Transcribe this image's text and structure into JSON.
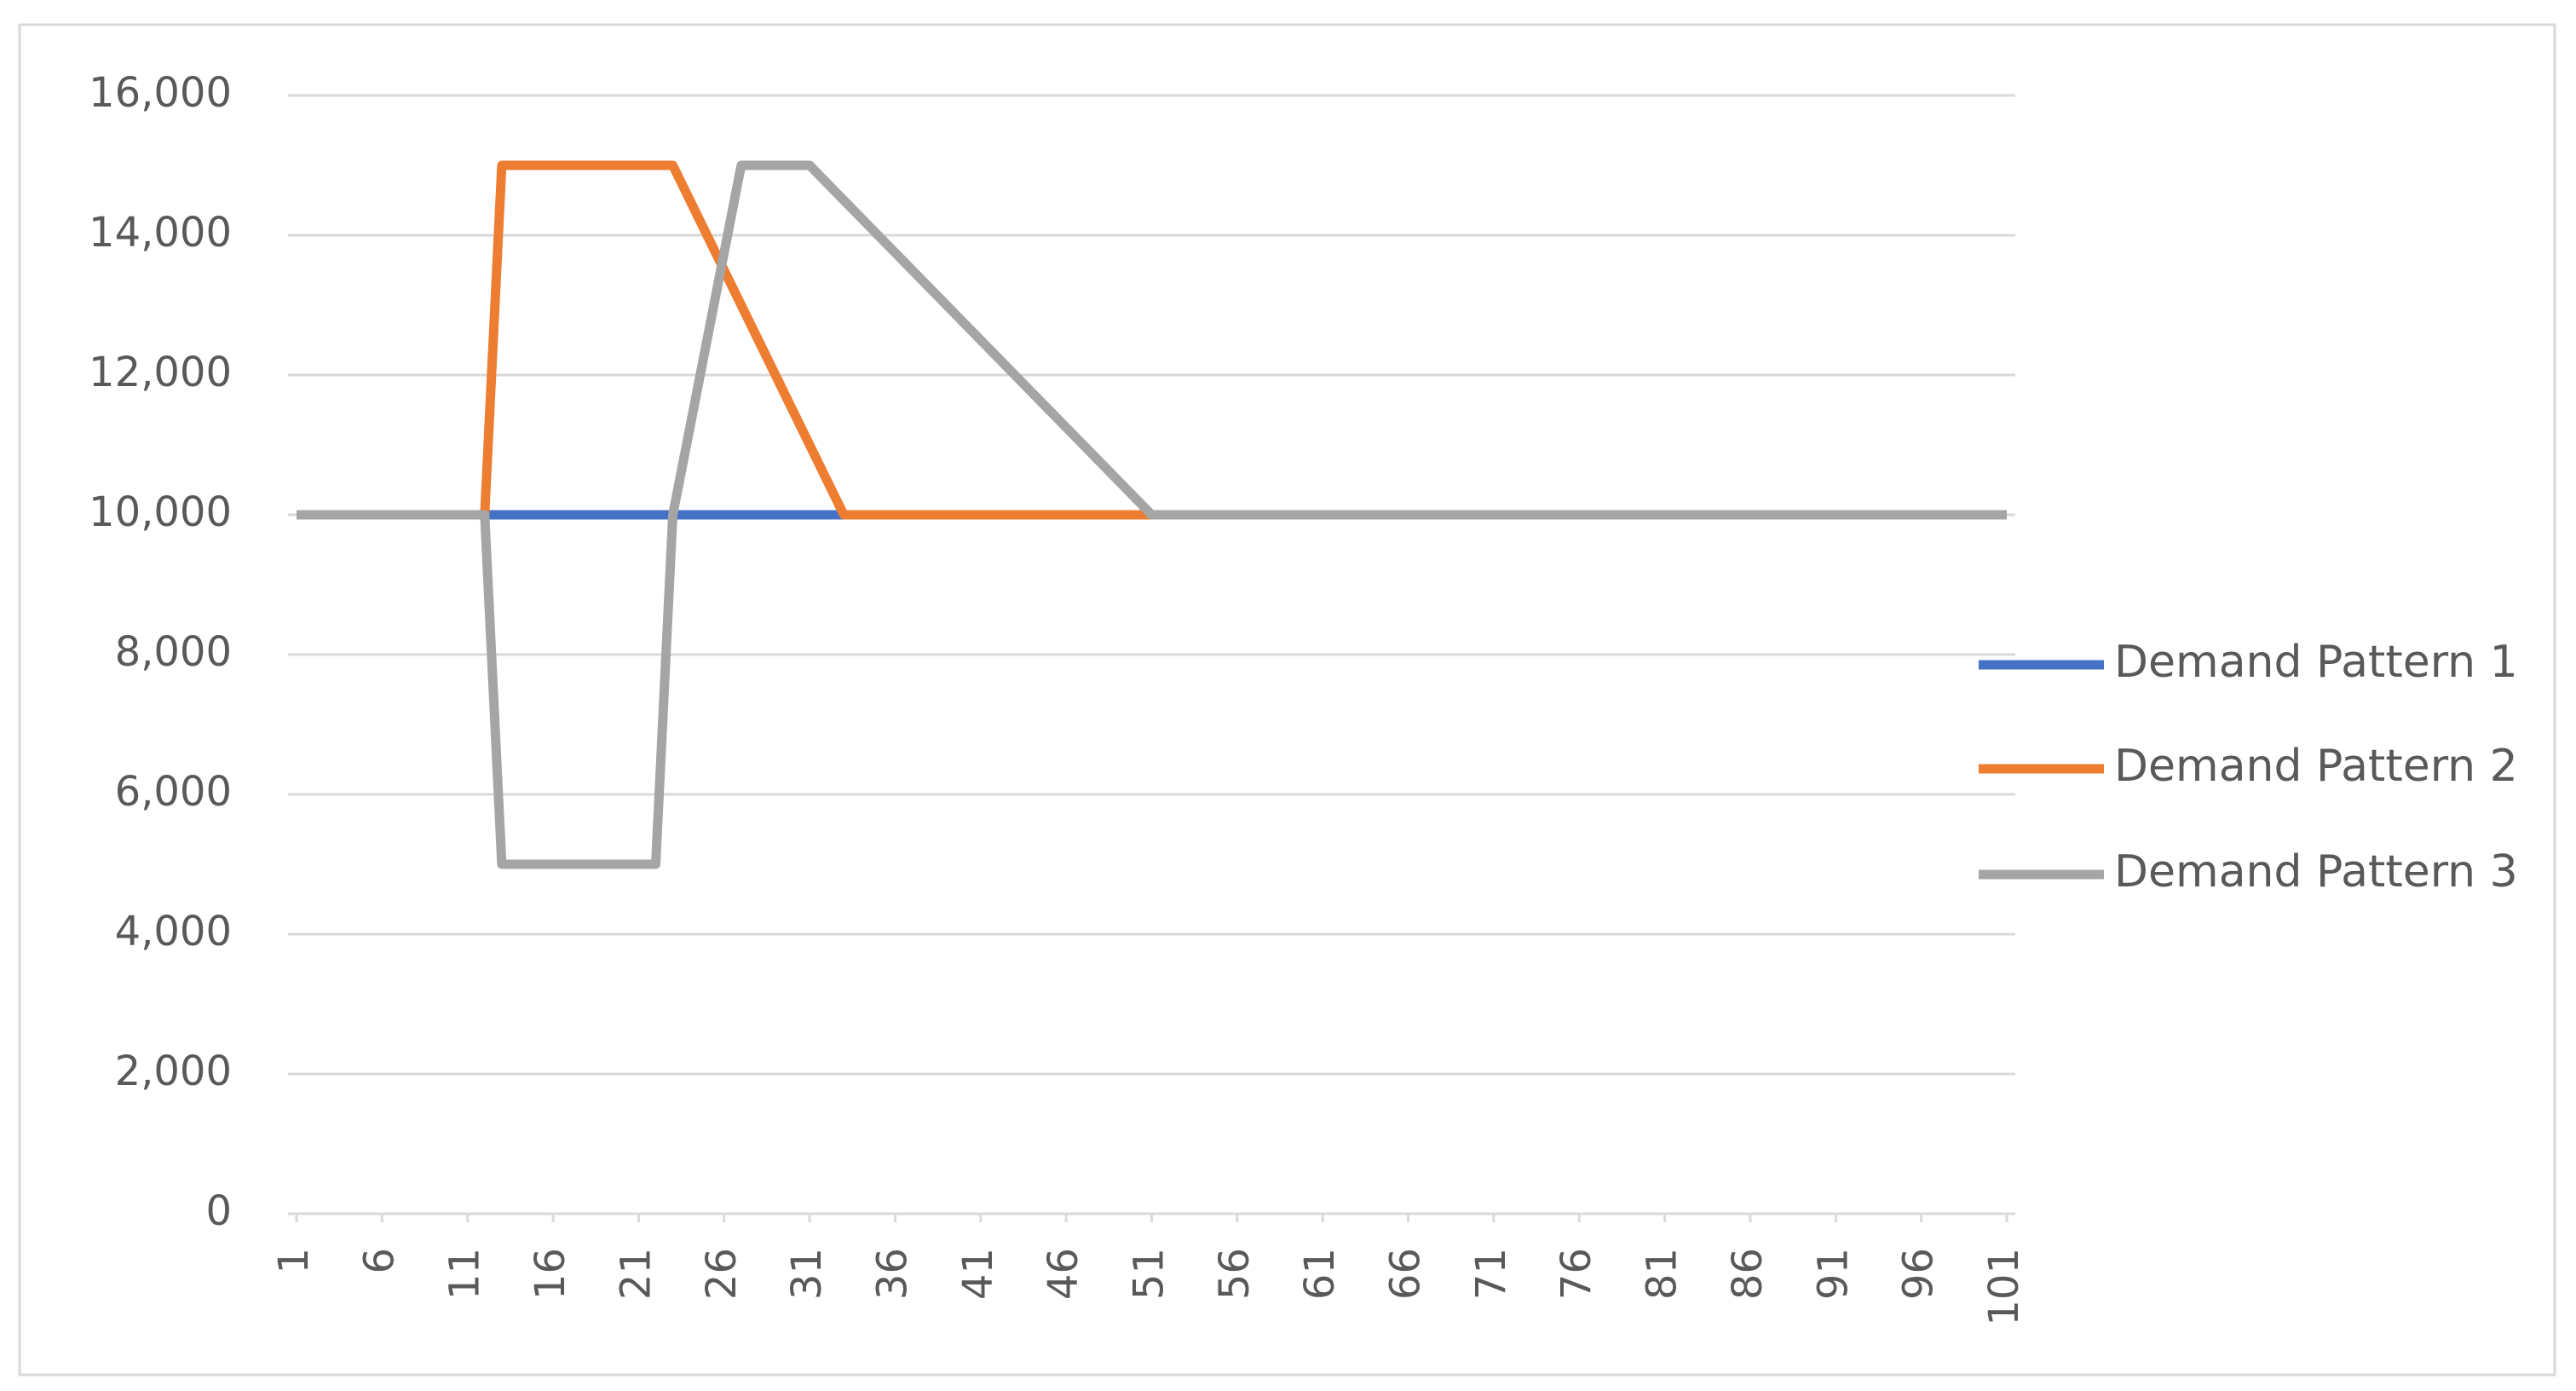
{
  "chart_data": {
    "type": "line",
    "x": [
      1,
      12,
      13,
      22,
      23,
      27,
      31,
      33,
      51,
      101
    ],
    "series": [
      {
        "name": "Demand Pattern 1",
        "color": "#4472c4",
        "values": [
          10000,
          10000,
          10000,
          10000,
          10000,
          10000,
          10000,
          10000,
          10000,
          10000
        ]
      },
      {
        "name": "Demand Pattern 2",
        "color": "#ed7d31",
        "values": [
          10000,
          10000,
          15000,
          15000,
          15000,
          13000,
          11000,
          10000,
          10000,
          10000
        ]
      },
      {
        "name": "Demand Pattern 3",
        "color": "#a5a5a5",
        "values": [
          10000,
          10000,
          5000,
          5000,
          10000,
          15000,
          15000,
          14500,
          10000,
          10000
        ]
      }
    ],
    "xlim": [
      0.5,
      101.5
    ],
    "xticks": [
      1,
      6,
      11,
      16,
      21,
      26,
      31,
      36,
      41,
      46,
      51,
      56,
      61,
      66,
      71,
      76,
      81,
      86,
      91,
      96,
      101
    ],
    "ylim": [
      0,
      16000
    ],
    "yticks": [
      {
        "value": 0,
        "label": "0"
      },
      {
        "value": 2000,
        "label": "2,000"
      },
      {
        "value": 4000,
        "label": "4,000"
      },
      {
        "value": 6000,
        "label": "6,000"
      },
      {
        "value": 8000,
        "label": "8,000"
      },
      {
        "value": 10000,
        "label": "10,000"
      },
      {
        "value": 12000,
        "label": "12,000"
      },
      {
        "value": 14000,
        "label": "14,000"
      },
      {
        "value": 16000,
        "label": "16,000"
      }
    ],
    "grid": true,
    "legend": "right"
  }
}
